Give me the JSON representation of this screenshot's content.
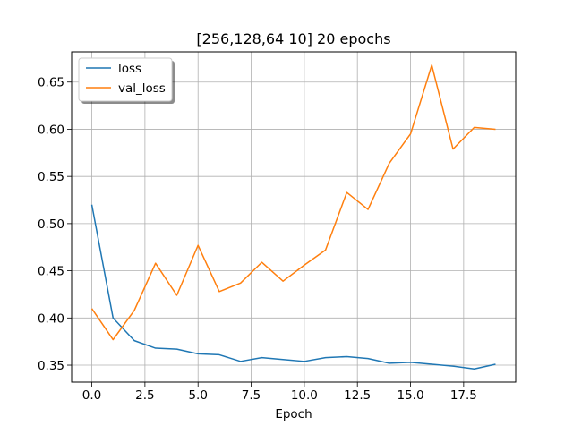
{
  "chart_data": {
    "type": "line",
    "title": "[256,128,64 10] 20 epochs",
    "xlabel": "Epoch",
    "ylabel": "",
    "x": [
      0,
      1,
      2,
      3,
      4,
      5,
      6,
      7,
      8,
      9,
      10,
      11,
      12,
      13,
      14,
      15,
      16,
      17,
      18,
      19
    ],
    "xlim": [
      -0.95,
      19.95
    ],
    "ylim": [
      0.332,
      0.682
    ],
    "xticks": [
      0.0,
      2.5,
      5.0,
      7.5,
      10.0,
      12.5,
      15.0,
      17.5
    ],
    "xtick_labels": [
      "0.0",
      "2.5",
      "5.0",
      "7.5",
      "10.0",
      "12.5",
      "15.0",
      "17.5"
    ],
    "yticks": [
      0.35,
      0.4,
      0.45,
      0.5,
      0.55,
      0.6,
      0.65
    ],
    "ytick_labels": [
      "0.35",
      "0.40",
      "0.45",
      "0.50",
      "0.55",
      "0.60",
      "0.65"
    ],
    "grid": true,
    "legend_position": "top-left",
    "series": [
      {
        "name": "loss",
        "color": "#1f77b4",
        "values": [
          0.52,
          0.4,
          0.376,
          0.368,
          0.367,
          0.362,
          0.361,
          0.354,
          0.358,
          0.356,
          0.354,
          0.358,
          0.359,
          0.357,
          0.352,
          0.353,
          0.351,
          0.349,
          0.346,
          0.351
        ]
      },
      {
        "name": "val_loss",
        "color": "#ff7f0e",
        "values": [
          0.41,
          0.377,
          0.408,
          0.458,
          0.424,
          0.477,
          0.428,
          0.437,
          0.459,
          0.439,
          0.456,
          0.472,
          0.533,
          0.515,
          0.564,
          0.595,
          0.668,
          0.579,
          0.602,
          0.6
        ]
      }
    ]
  }
}
